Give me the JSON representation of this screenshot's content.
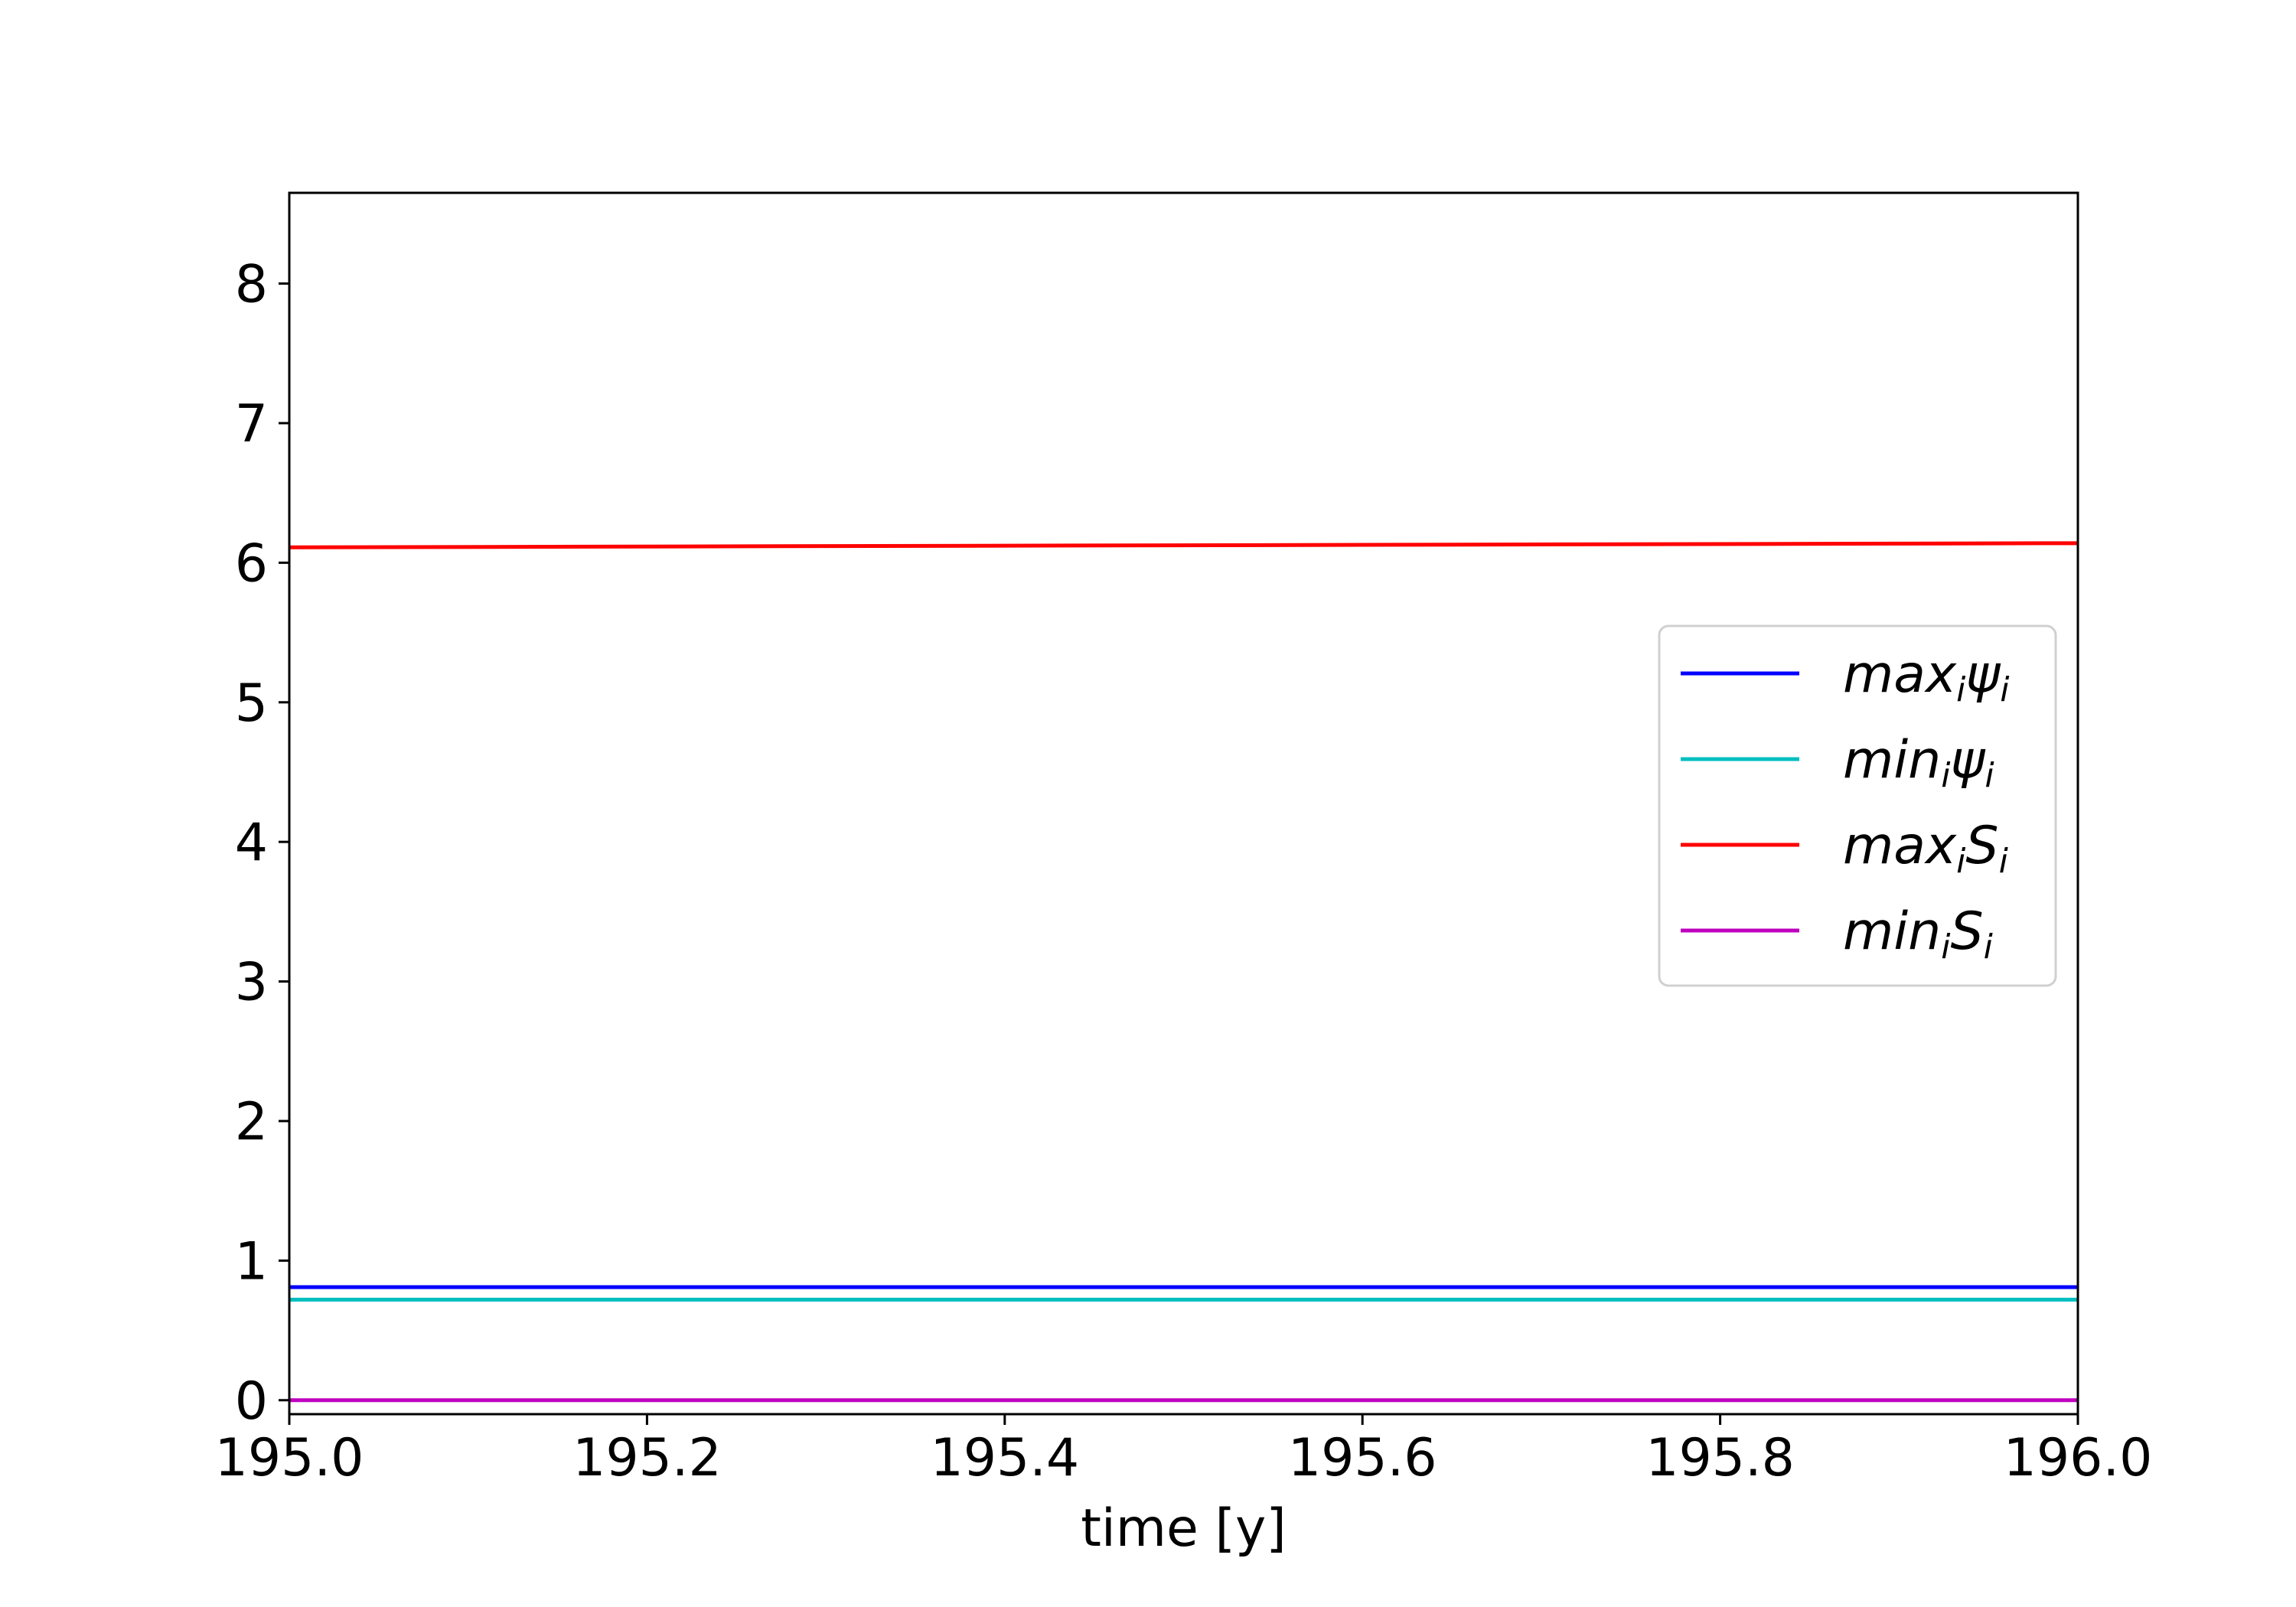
{
  "chart_data": {
    "type": "line",
    "title": "",
    "xlabel": "time [y]",
    "ylabel": "",
    "xlim": [
      195.0,
      196.0
    ],
    "ylim": [
      -0.1,
      8.65
    ],
    "x_ticks": [
      195.0,
      195.2,
      195.4,
      195.6,
      195.8,
      196.0
    ],
    "x_tick_labels": [
      "195.0",
      "195.2",
      "195.4",
      "195.6",
      "195.8",
      "196.0"
    ],
    "y_ticks": [
      0,
      1,
      2,
      3,
      4,
      5,
      6,
      7,
      8
    ],
    "y_tick_labels": [
      "0",
      "1",
      "2",
      "3",
      "4",
      "5",
      "6",
      "7",
      "8"
    ],
    "grid": false,
    "legend_position": "center-right",
    "series": [
      {
        "name": "max_i ψ_i",
        "label_main": "max",
        "label_sub": "i",
        "label_main2": "ψ",
        "label_sub2": "i",
        "color": "#0000ff",
        "x": [
          195.0,
          196.0
        ],
        "y": [
          0.81,
          0.81
        ]
      },
      {
        "name": "min_i ψ_i",
        "label_main": "min",
        "label_sub": "i",
        "label_main2": "ψ",
        "label_sub2": "i",
        "color": "#00bfbf",
        "x": [
          195.0,
          196.0
        ],
        "y": [
          0.72,
          0.72
        ]
      },
      {
        "name": "max_i S_i",
        "label_main": "max",
        "label_sub": "i",
        "label_main2": "S",
        "label_sub2": "i",
        "color": "#ff0000",
        "x": [
          195.0,
          196.0
        ],
        "y": [
          6.11,
          6.14
        ]
      },
      {
        "name": "min_i S_i",
        "label_main": "min",
        "label_sub": "i",
        "label_main2": "S",
        "label_sub2": "i",
        "color": "#bf00bf",
        "x": [
          195.0,
          196.0
        ],
        "y": [
          0.0,
          0.0
        ]
      }
    ]
  }
}
